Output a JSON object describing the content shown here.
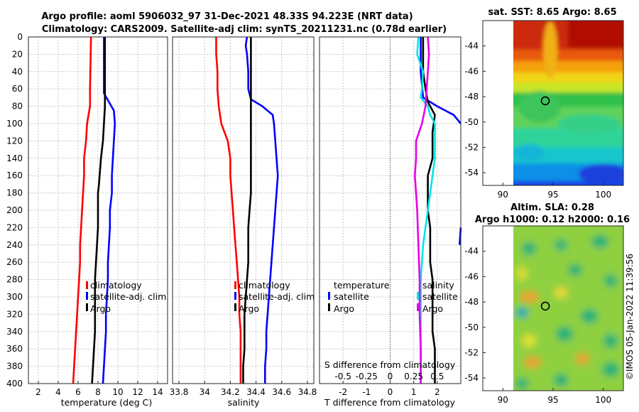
{
  "header": {
    "title_line1": "Argo profile: aoml 5906032_97 31-Dec-2021 48.33S 94.223E (NRT data)",
    "title_line2": "Climatology: CARS2009. Satellite-adj clim: synTS_20211231.nc (0.78d earlier)"
  },
  "colors": {
    "climatology": "#ff0000",
    "satellite": "#0000ff",
    "argo": "#000000",
    "sal_satellite": "#00e5e5",
    "sal_argo": "#e600e6"
  },
  "chart_data": [
    {
      "type": "line",
      "id": "temperature",
      "xlabel": "temperature (deg C)",
      "xlim": [
        1,
        15
      ],
      "xticks": [
        2,
        4,
        6,
        8,
        10,
        12,
        14
      ],
      "ylim": [
        400,
        0
      ],
      "yticks": [
        0,
        20,
        40,
        60,
        80,
        100,
        120,
        140,
        160,
        180,
        200,
        220,
        240,
        260,
        280,
        300,
        320,
        340,
        360,
        380,
        400
      ],
      "legend": [
        "climatology",
        "satellite-adj. clim",
        "Argo"
      ],
      "series": [
        {
          "name": "climatology",
          "color": "#ff0000",
          "points": [
            [
              7.3,
              0
            ],
            [
              7.2,
              60
            ],
            [
              7.2,
              80
            ],
            [
              6.9,
              100
            ],
            [
              6.8,
              120
            ],
            [
              6.6,
              140
            ],
            [
              6.6,
              160
            ],
            [
              6.5,
              180
            ],
            [
              6.4,
              200
            ],
            [
              6.3,
              220
            ],
            [
              6.2,
              240
            ],
            [
              6.2,
              260
            ],
            [
              6.1,
              280
            ],
            [
              6.0,
              300
            ],
            [
              5.9,
              320
            ],
            [
              5.8,
              340
            ],
            [
              5.7,
              360
            ],
            [
              5.6,
              380
            ],
            [
              5.5,
              400
            ]
          ]
        },
        {
          "name": "satellite-adj. clim",
          "color": "#0000ff",
          "points": [
            [
              8.6,
              0
            ],
            [
              8.6,
              65
            ],
            [
              9.1,
              75
            ],
            [
              9.6,
              85
            ],
            [
              9.7,
              100
            ],
            [
              9.6,
              120
            ],
            [
              9.5,
              140
            ],
            [
              9.4,
              160
            ],
            [
              9.4,
              180
            ],
            [
              9.2,
              200
            ],
            [
              9.2,
              220
            ],
            [
              9.1,
              240
            ],
            [
              9.0,
              260
            ],
            [
              9.0,
              280
            ],
            [
              8.9,
              300
            ],
            [
              8.8,
              320
            ],
            [
              8.8,
              340
            ],
            [
              8.7,
              360
            ],
            [
              8.6,
              380
            ],
            [
              8.5,
              400
            ]
          ]
        },
        {
          "name": "Argo",
          "color": "#000000",
          "points": [
            [
              8.7,
              0
            ],
            [
              8.7,
              40
            ],
            [
              8.7,
              80
            ],
            [
              8.6,
              100
            ],
            [
              8.5,
              120
            ],
            [
              8.3,
              140
            ],
            [
              8.2,
              155
            ],
            [
              8.1,
              170
            ],
            [
              8.0,
              180
            ],
            [
              8.0,
              200
            ],
            [
              8.0,
              220
            ],
            [
              7.9,
              240
            ],
            [
              7.8,
              260
            ],
            [
              7.7,
              280
            ],
            [
              7.7,
              300
            ],
            [
              7.7,
              320
            ],
            [
              7.7,
              340
            ],
            [
              7.6,
              360
            ],
            [
              7.5,
              380
            ],
            [
              7.4,
              400
            ]
          ]
        }
      ]
    },
    {
      "type": "line",
      "id": "salinity",
      "xlabel": "salinity",
      "xlim": [
        33.75,
        34.85
      ],
      "xticks": [
        33.8,
        34,
        34.2,
        34.4,
        34.6,
        34.8
      ],
      "xticklabels": [
        "33.8",
        "34",
        "34.2",
        "34.4",
        "34.6",
        "34.8"
      ],
      "ylim": [
        400,
        0
      ],
      "legend": [
        "climatology",
        "satellite-adj. clim",
        "Argo"
      ],
      "series": [
        {
          "name": "climatology",
          "color": "#ff0000",
          "points": [
            [
              34.09,
              0
            ],
            [
              34.09,
              20
            ],
            [
              34.1,
              40
            ],
            [
              34.1,
              60
            ],
            [
              34.11,
              80
            ],
            [
              34.13,
              100
            ],
            [
              34.18,
              120
            ],
            [
              34.2,
              140
            ],
            [
              34.2,
              160
            ],
            [
              34.21,
              180
            ],
            [
              34.22,
              200
            ],
            [
              34.23,
              220
            ],
            [
              34.24,
              240
            ],
            [
              34.25,
              260
            ],
            [
              34.26,
              280
            ],
            [
              34.27,
              300
            ],
            [
              34.27,
              320
            ],
            [
              34.28,
              340
            ],
            [
              34.28,
              360
            ],
            [
              34.28,
              380
            ],
            [
              34.28,
              400
            ]
          ]
        },
        {
          "name": "satellite-adj. clim",
          "color": "#0000ff",
          "points": [
            [
              34.33,
              0
            ],
            [
              34.32,
              10
            ],
            [
              34.33,
              20
            ],
            [
              34.34,
              40
            ],
            [
              34.34,
              60
            ],
            [
              34.36,
              72
            ],
            [
              34.45,
              80
            ],
            [
              34.53,
              90
            ],
            [
              34.54,
              100
            ],
            [
              34.55,
              120
            ],
            [
              34.56,
              140
            ],
            [
              34.57,
              160
            ],
            [
              34.56,
              180
            ],
            [
              34.55,
              200
            ],
            [
              34.54,
              220
            ],
            [
              34.53,
              240
            ],
            [
              34.52,
              260
            ],
            [
              34.51,
              280
            ],
            [
              34.5,
              300
            ],
            [
              34.49,
              320
            ],
            [
              34.48,
              340
            ],
            [
              34.48,
              360
            ],
            [
              34.47,
              380
            ],
            [
              34.47,
              400
            ]
          ]
        },
        {
          "name": "Argo",
          "color": "#000000",
          "points": [
            [
              34.36,
              0
            ],
            [
              34.36,
              40
            ],
            [
              34.36,
              80
            ],
            [
              34.36,
              100
            ],
            [
              34.36,
              140
            ],
            [
              34.36,
              180
            ],
            [
              34.35,
              200
            ],
            [
              34.34,
              220
            ],
            [
              34.34,
              240
            ],
            [
              34.34,
              260
            ],
            [
              34.33,
              280
            ],
            [
              34.32,
              300
            ],
            [
              34.31,
              320
            ],
            [
              34.31,
              340
            ],
            [
              34.31,
              360
            ],
            [
              34.3,
              380
            ],
            [
              34.3,
              400
            ]
          ]
        }
      ]
    },
    {
      "type": "line",
      "id": "difference",
      "xlabel": "T difference from climatology",
      "secondary_xlabel": "S difference from climatology",
      "xlim": [
        -3,
        3
      ],
      "xticks": [
        -2,
        -1,
        0,
        1,
        2
      ],
      "xticklabels": [
        "-2",
        "-1",
        "0",
        "1",
        "2"
      ],
      "secondary_xticklabels": [
        "-0.5",
        "-0.25",
        "0",
        "0.25",
        "0.5"
      ],
      "ylim": [
        400,
        0
      ],
      "legend_left_title": "temperature",
      "legend_left": [
        "satellite",
        "Argo"
      ],
      "legend_right_title": "salinity",
      "legend_right": [
        "satellite",
        "Argo"
      ],
      "series": [
        {
          "name": "temperature satellite",
          "color": "#0000ff",
          "points": [
            [
              1.3,
              0
            ],
            [
              1.3,
              40
            ],
            [
              1.4,
              70
            ],
            [
              2.0,
              80
            ],
            [
              2.7,
              90
            ],
            [
              3.0,
              100
            ]
          ]
        },
        {
          "name": "temperature satellite deep",
          "color": "#0000ff",
          "points": [
            [
              3.0,
              220
            ],
            [
              2.95,
              240
            ]
          ]
        },
        {
          "name": "temperature Argo",
          "color": "#000000",
          "points": [
            [
              1.4,
              0
            ],
            [
              1.4,
              40
            ],
            [
              1.5,
              60
            ],
            [
              1.6,
              75
            ],
            [
              1.9,
              90
            ],
            [
              1.8,
              110
            ],
            [
              1.8,
              140
            ],
            [
              1.6,
              160
            ],
            [
              1.6,
              180
            ],
            [
              1.6,
              200
            ],
            [
              1.7,
              220
            ],
            [
              1.7,
              240
            ],
            [
              1.7,
              260
            ],
            [
              1.8,
              280
            ],
            [
              1.8,
              300
            ],
            [
              1.8,
              320
            ],
            [
              1.8,
              340
            ],
            [
              1.9,
              360
            ],
            [
              1.9,
              380
            ],
            [
              1.9,
              400
            ]
          ]
        },
        {
          "name": "salinity satellite",
          "color": "#00e5e5",
          "points": [
            [
              1.2,
              0
            ],
            [
              1.15,
              20
            ],
            [
              1.4,
              40
            ],
            [
              1.35,
              60
            ],
            [
              1.3,
              70
            ],
            [
              1.6,
              80
            ],
            [
              1.7,
              90
            ],
            [
              1.9,
              100
            ],
            [
              1.9,
              120
            ],
            [
              1.9,
              140
            ],
            [
              1.8,
              160
            ],
            [
              1.7,
              180
            ],
            [
              1.6,
              200
            ],
            [
              1.5,
              220
            ],
            [
              1.4,
              240
            ],
            [
              1.3,
              280
            ],
            [
              1.3,
              320
            ],
            [
              1.3,
              360
            ],
            [
              1.3,
              400
            ]
          ]
        },
        {
          "name": "salinity Argo",
          "color": "#e600e6",
          "points": [
            [
              1.6,
              0
            ],
            [
              1.65,
              20
            ],
            [
              1.6,
              40
            ],
            [
              1.55,
              60
            ],
            [
              1.5,
              80
            ],
            [
              1.35,
              100
            ],
            [
              1.1,
              120
            ],
            [
              1.1,
              140
            ],
            [
              1.05,
              160
            ],
            [
              1.1,
              180
            ],
            [
              1.15,
              200
            ],
            [
              1.2,
              240
            ],
            [
              1.25,
              280
            ],
            [
              1.25,
              320
            ],
            [
              1.3,
              360
            ],
            [
              1.3,
              400
            ]
          ]
        }
      ]
    },
    {
      "type": "heatmap",
      "id": "sst-map",
      "title": "sat. SST: 8.65 Argo: 8.65",
      "xlim": [
        88,
        102
      ],
      "ylim": [
        -55,
        -42
      ],
      "xticks": [
        90,
        95,
        100
      ],
      "yticks": [
        -44,
        -46,
        -48,
        -50,
        -52,
        -54
      ],
      "marker": {
        "lon": 94.223,
        "lat": -48.33
      }
    },
    {
      "type": "heatmap",
      "id": "sla-map",
      "title_line1": "Altim. SLA: 0.28",
      "title_line2": "Argo h1000: 0.12 h2000: 0.16",
      "xlim": [
        88,
        102
      ],
      "ylim": [
        -55,
        -42
      ],
      "xticks": [
        90,
        95,
        100
      ],
      "yticks": [
        -44,
        -46,
        -48,
        -50,
        -52,
        -54
      ],
      "marker": {
        "lon": 94.223,
        "lat": -48.33
      }
    }
  ],
  "footer": {
    "credit": "©IMOS 05-Jan-2022 11:39:56"
  }
}
